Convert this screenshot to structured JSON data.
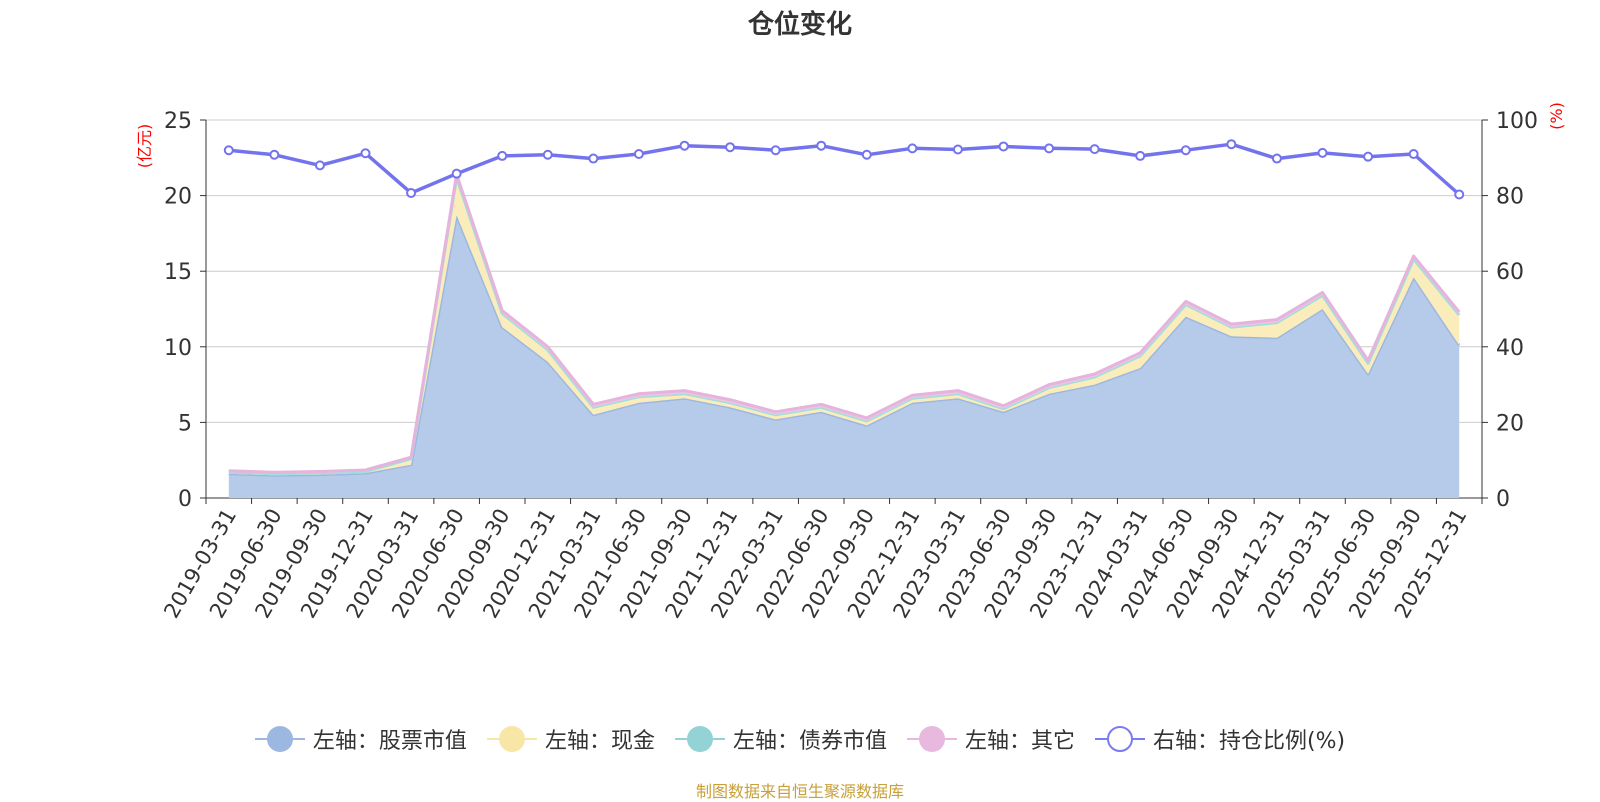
{
  "page": {
    "title": "仓位变化",
    "source": "制图数据来自恒生聚源数据库"
  },
  "chart_data": {
    "type": "area",
    "title": "仓位变化",
    "x": [
      "2019-03-31",
      "2019-06-30",
      "2019-09-30",
      "2019-12-31",
      "2020-03-31",
      "2020-06-30",
      "2020-09-30",
      "2020-12-31",
      "2021-03-31",
      "2021-06-30",
      "2021-09-30",
      "2021-12-31",
      "2022-03-31",
      "2022-06-30",
      "2022-09-30",
      "2022-12-31",
      "2023-03-31",
      "2023-06-30",
      "2023-09-30",
      "2023-12-31",
      "2024-03-31",
      "2024-06-30",
      "2024-09-30",
      "2024-12-31",
      "2025-03-31",
      "2025-06-30",
      "2025-09-30",
      "2025-12-31"
    ],
    "left_axis": {
      "label": "(亿元)",
      "ylim": [
        0,
        25
      ],
      "ticks": [
        0,
        5,
        10,
        15,
        20,
        25
      ]
    },
    "right_axis": {
      "label": "(%)",
      "ylim": [
        0,
        100
      ],
      "ticks": [
        0,
        20,
        40,
        60,
        80,
        100
      ]
    },
    "grid": true,
    "legend_position": "bottom",
    "stacked": true,
    "series": [
      {
        "name": "左轴：股票市值",
        "axis": "left",
        "type": "area",
        "color": "#9db8e0",
        "fill": "#b6cbea",
        "legend_color": "#9db8e0",
        "values": [
          1.6,
          1.5,
          1.55,
          1.65,
          2.2,
          18.7,
          11.3,
          9.0,
          5.5,
          6.3,
          6.6,
          6.0,
          5.2,
          5.7,
          4.8,
          6.3,
          6.6,
          5.7,
          6.9,
          7.5,
          8.6,
          12.0,
          10.7,
          10.6,
          12.5,
          8.2,
          14.6,
          10.1
        ]
      },
      {
        "name": "左轴：现金",
        "axis": "left",
        "type": "area",
        "color": "#f5e3a3",
        "fill": "#fbedbb",
        "legend_color": "#f8e6a6",
        "values": [
          0.1,
          0.1,
          0.1,
          0.1,
          0.4,
          2.5,
          0.9,
          0.8,
          0.5,
          0.4,
          0.3,
          0.3,
          0.3,
          0.3,
          0.3,
          0.3,
          0.3,
          0.2,
          0.4,
          0.5,
          0.8,
          0.8,
          0.6,
          1.0,
          0.9,
          0.7,
          1.2,
          2.0
        ]
      },
      {
        "name": "左轴：债券市值",
        "axis": "left",
        "type": "area",
        "color": "#9fdfdd",
        "fill": "#9fdfdd",
        "legend_color": "#93d3d5",
        "values": [
          0,
          0,
          0,
          0,
          0,
          0,
          0,
          0,
          0,
          0,
          0,
          0,
          0,
          0,
          0,
          0,
          0,
          0,
          0,
          0,
          0,
          0,
          0,
          0,
          0,
          0,
          0,
          0
        ]
      },
      {
        "name": "左轴：其它",
        "axis": "left",
        "type": "area",
        "color": "#e5b3dc",
        "fill": "#ecc5e4",
        "legend_color": "#e8b8df",
        "values": [
          0.1,
          0.1,
          0.1,
          0.1,
          0.1,
          0.2,
          0.2,
          0.2,
          0.2,
          0.2,
          0.2,
          0.2,
          0.2,
          0.2,
          0.2,
          0.2,
          0.2,
          0.2,
          0.2,
          0.2,
          0.2,
          0.2,
          0.2,
          0.2,
          0.2,
          0.2,
          0.2,
          0.2
        ]
      },
      {
        "name": "右轴：持仓比例(%)",
        "axis": "right",
        "type": "line",
        "color": "#7373ee",
        "legend_color": "#7b7bf0",
        "values": [
          92.0,
          90.8,
          88.0,
          91.2,
          80.7,
          85.8,
          90.5,
          90.8,
          89.8,
          91.0,
          93.2,
          92.8,
          92.0,
          93.2,
          90.8,
          92.5,
          92.2,
          93.0,
          92.5,
          92.3,
          90.5,
          92.0,
          93.6,
          89.8,
          91.3,
          90.3,
          91.0,
          80.3
        ]
      }
    ]
  }
}
